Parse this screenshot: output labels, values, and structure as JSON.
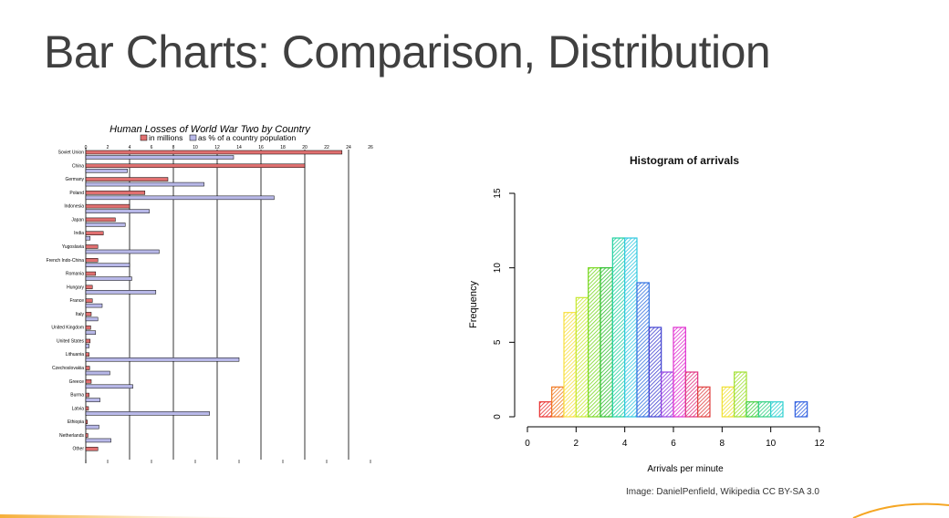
{
  "slide": {
    "title": "Bar Charts: Comparison, Distribution",
    "credit": "Image: DanielPenfield, Wikipedia CC BY-SA 3.0"
  },
  "chart_data": [
    {
      "type": "bar",
      "orientation": "horizontal",
      "title": "Human Losses of World War Two by Country",
      "categories": [
        "Soviet Union",
        "China",
        "Germany",
        "Poland",
        "Indonesia",
        "Japan",
        "India",
        "Yugoslavia",
        "French Indo-China",
        "Romania",
        "Hungary",
        "France",
        "Italy",
        "United Kingdom",
        "United States",
        "Lithuania",
        "Czechoslovakia",
        "Greece",
        "Burma",
        "Latvia",
        "Ethiopia",
        "Netherlands",
        "Other"
      ],
      "series": [
        {
          "name": "in millions",
          "color": "#e07070",
          "values": [
            23.4,
            20,
            7.5,
            5.4,
            4,
            2.7,
            1.6,
            1.1,
            1.1,
            0.9,
            0.6,
            0.6,
            0.5,
            0.45,
            0.4,
            0.3,
            0.35,
            0.5,
            0.3,
            0.25,
            0.15,
            0.2,
            1.1
          ]
        },
        {
          "name": "as % of a country population",
          "color": "#b8b8e8",
          "values": [
            13.5,
            3.8,
            10.8,
            17.2,
            5.8,
            3.6,
            0.4,
            6.7,
            4,
            4.2,
            6.4,
            1.5,
            1.1,
            0.9,
            0.3,
            14,
            2.2,
            4.3,
            1.3,
            11.3,
            1.2,
            2.3,
            0
          ]
        }
      ],
      "xticks": [
        0,
        2,
        4,
        6,
        8,
        10,
        12,
        14,
        16,
        18,
        20,
        22,
        24,
        26
      ],
      "xlim": [
        0,
        26
      ],
      "legend": "top"
    },
    {
      "type": "bar",
      "subtype": "histogram",
      "title": "Histogram of arrivals",
      "xlabel": "Arrivals per minute",
      "ylabel": "Frequency",
      "bin_width": 0.5,
      "bin_starts": [
        0.5,
        1,
        1.5,
        2,
        2.5,
        3,
        3.5,
        4,
        4.5,
        5,
        5.5,
        6,
        6.5,
        7,
        7.5,
        8,
        8.5,
        9,
        9.5,
        10,
        10.5,
        11
      ],
      "values": [
        1,
        2,
        7,
        8,
        10,
        10,
        12,
        12,
        9,
        6,
        3,
        6,
        3,
        2,
        0,
        2,
        3,
        1,
        1,
        1,
        0,
        1
      ],
      "colors": [
        "#e83030",
        "#f07820",
        "#f8e040",
        "#c8e830",
        "#78d820",
        "#30c030",
        "#20d0a0",
        "#30c8e0",
        "#3070e0",
        "#4040d0",
        "#9040e0",
        "#e030d0",
        "#e03080",
        "#e04040",
        "#f0a020",
        "#f0e030",
        "#a0e030",
        "#40d040",
        "#30d080",
        "#30d0d0",
        "#30a0e0",
        "#3060e0"
      ],
      "xticks": [
        0,
        2,
        4,
        6,
        8,
        10,
        12
      ],
      "yticks": [
        0,
        5,
        10,
        15
      ],
      "xlim": [
        0,
        12
      ],
      "ylim": [
        0,
        15
      ]
    }
  ]
}
